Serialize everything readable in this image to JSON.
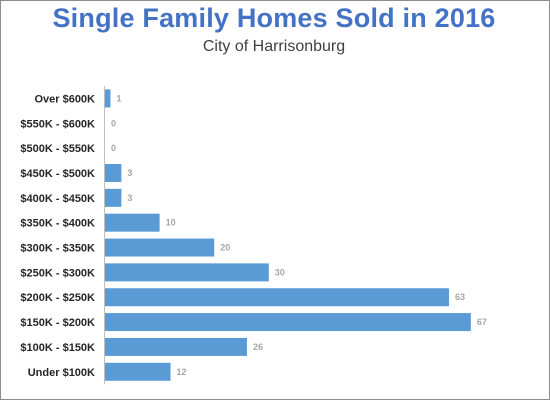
{
  "chart_data": {
    "type": "bar",
    "orientation": "horizontal",
    "title": "Single Family Homes Sold in 2016",
    "subtitle": "City of Harrisonburg",
    "categories": [
      "Over $600K",
      "$550K - $600K",
      "$500K - $550K",
      "$450K - $500K",
      "$400K - $450K",
      "$350K - $400K",
      "$300K - $350K",
      "$250K - $300K",
      "$200K - $250K",
      "$150K - $200K",
      "$100K - $150K",
      "Under $100K"
    ],
    "values": [
      1,
      0,
      0,
      3,
      3,
      10,
      20,
      30,
      63,
      67,
      26,
      12
    ],
    "xlim": [
      0,
      70
    ],
    "grid": false,
    "data_labels": true,
    "bar_color": "#5b9bd5",
    "title_color": "#4472c4"
  }
}
